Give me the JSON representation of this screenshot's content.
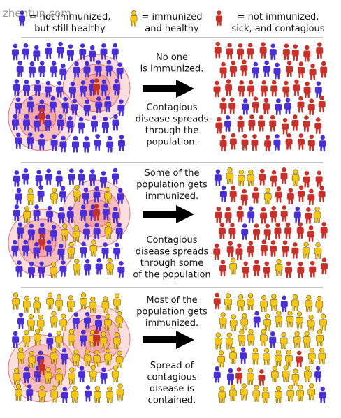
{
  "watermark": "zhentun.com",
  "colors": {
    "not_immunized": "#4a2fd6",
    "immunized": "#f5c518",
    "sick": "#c8312a",
    "outline": "#6b5a1a",
    "ring_fill": "#f08a8a",
    "ring_stroke": "#d0202a",
    "arrow": "#000000",
    "divider": "#888888"
  },
  "legend": [
    {
      "icon": "person-blue-icon",
      "lines": [
        "= not immunized,",
        "but still healthy"
      ]
    },
    {
      "icon": "person-yellow-icon",
      "lines": [
        "= immunized",
        "and healthy"
      ]
    },
    {
      "icon": "person-red-icon",
      "lines": [
        "= not immunized,",
        "sick, and contagious"
      ]
    }
  ],
  "panels": [
    {
      "top_caption": [
        "No one",
        "is immunized."
      ],
      "bottom_caption": [
        "Contagious",
        "disease spreads",
        "through the",
        "population."
      ],
      "immunized_share": 0,
      "after": "all-sick"
    },
    {
      "top_caption": [
        "Some of the",
        "population gets",
        "immunized."
      ],
      "bottom_caption": [
        "Contagious",
        "disease spreads",
        "through some",
        "of the population"
      ],
      "immunized_share": 0.15,
      "after": "non-immunized-sick"
    },
    {
      "top_caption": [
        "Most of the",
        "population gets",
        "immunized."
      ],
      "bottom_caption": [
        "Spread of",
        "contagious",
        "disease is",
        "contained."
      ],
      "immunized_share": 0.8,
      "after": "contained"
    }
  ]
}
